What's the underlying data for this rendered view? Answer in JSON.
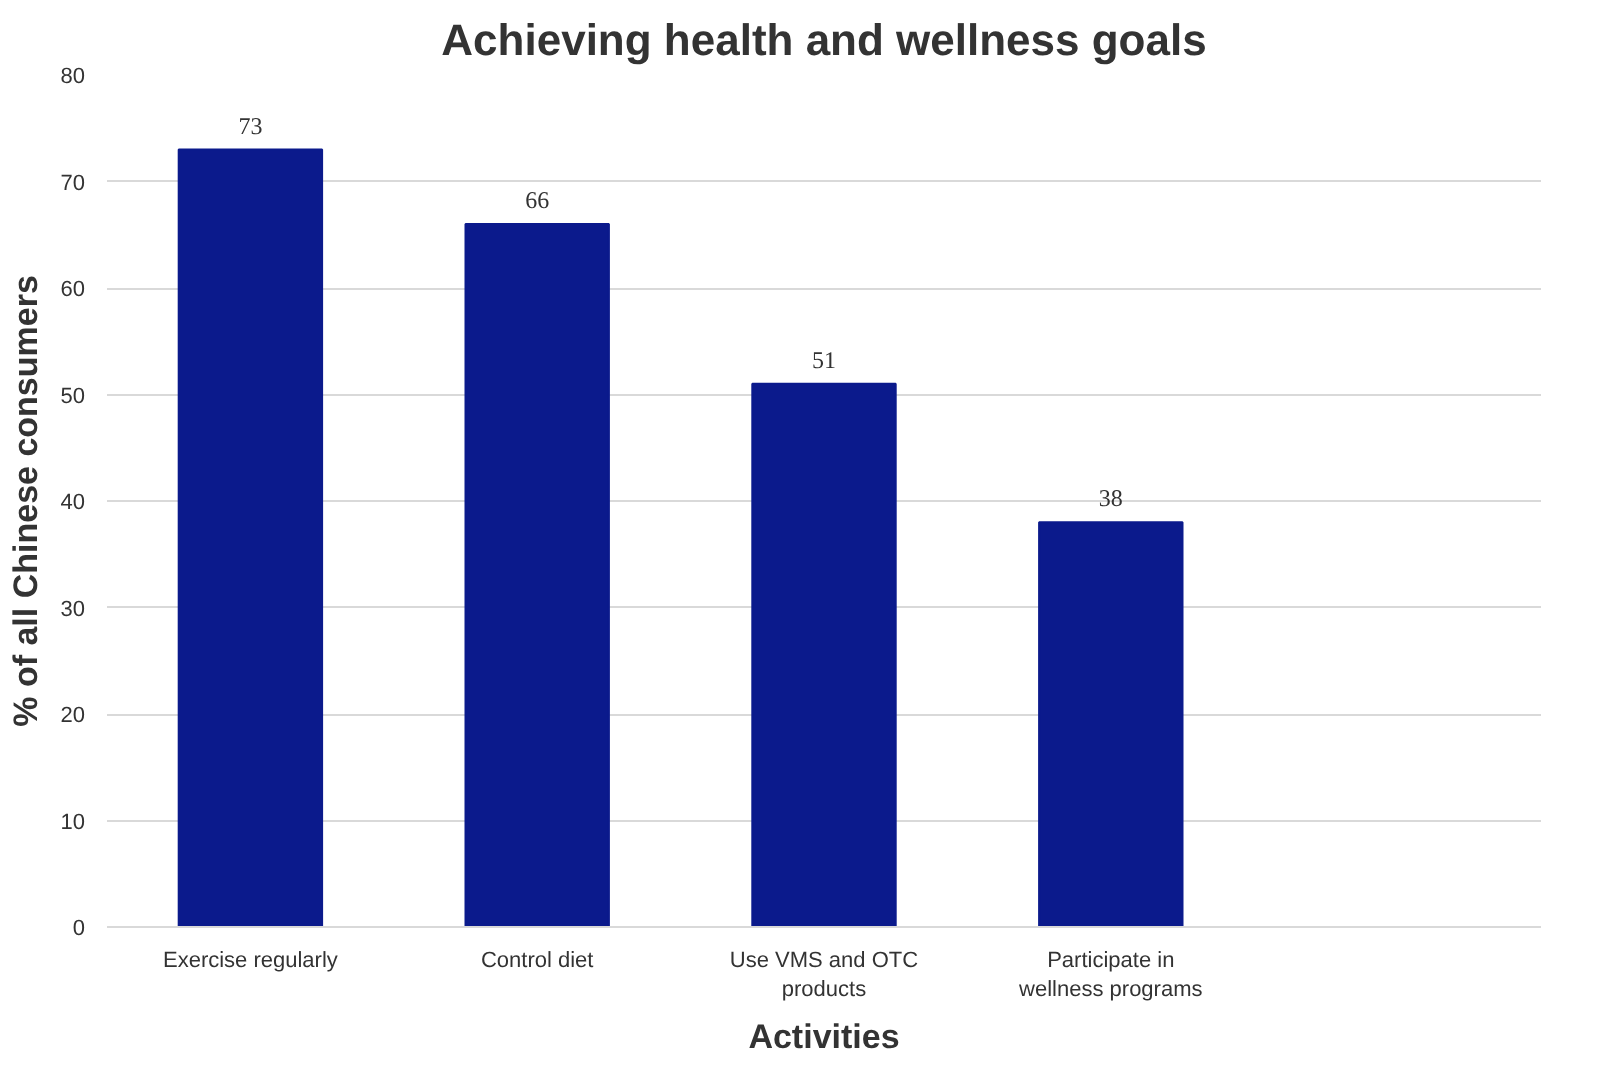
{
  "chart_data": {
    "type": "bar",
    "title": "Achieving health and wellness goals",
    "xlabel": "Activities",
    "ylabel": "% of all Chinese consumers",
    "categories": [
      "Exercise regularly",
      "Control diet",
      "Use VMS and OTC products",
      "Participate in wellness programs",
      null
    ],
    "values": [
      73,
      66,
      51,
      38,
      null
    ],
    "color": "#0b1a8c",
    "ylim": [
      0,
      80
    ],
    "yticks": [
      0,
      10,
      20,
      30,
      40,
      50,
      60,
      70,
      80
    ],
    "grid": "y",
    "data_labels": true
  }
}
